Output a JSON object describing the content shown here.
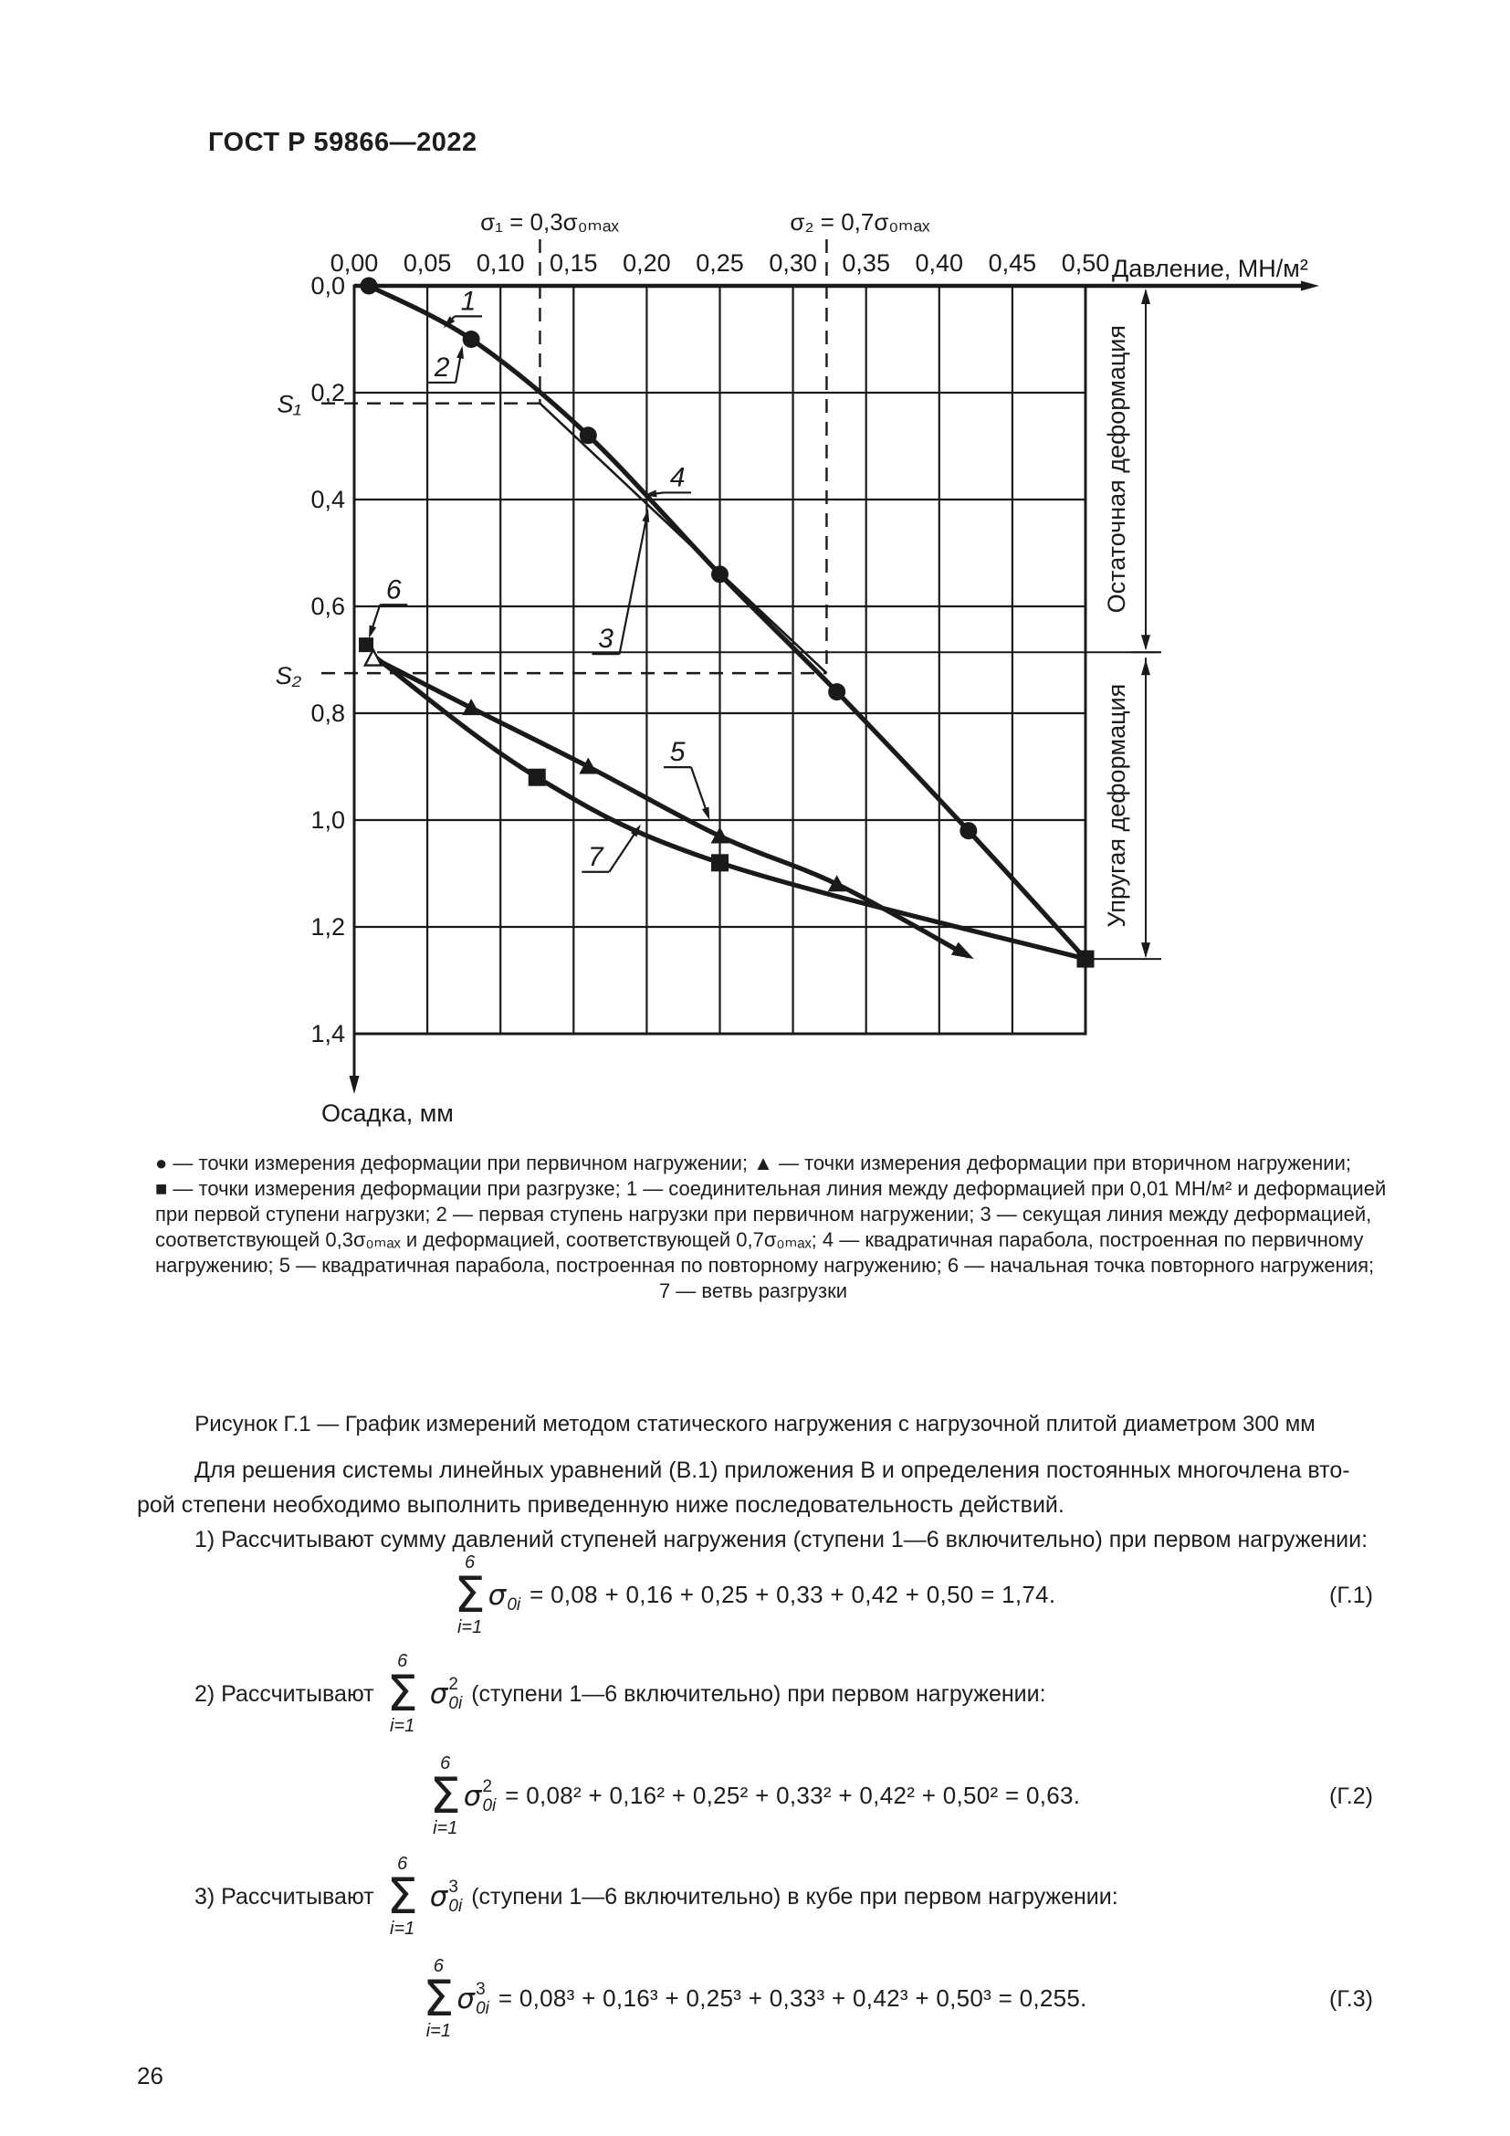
{
  "page": {
    "header": "ГОСТ Р 59866—2022",
    "number": "26"
  },
  "chart_data": {
    "type": "line",
    "title": "",
    "xlabel": "Давление, МН/м²",
    "ylabel": "Осадка, мм",
    "xlim": [
      0,
      0.5
    ],
    "ylim": [
      0,
      1.4
    ],
    "grid": true,
    "xticks": [
      "0,00",
      "0,05",
      "0,10",
      "0,15",
      "0,20",
      "0,25",
      "0,30",
      "0,35",
      "0,40",
      "0,45",
      "0,50"
    ],
    "yticks": [
      "0,0",
      "0,2",
      "0,4",
      "0,6",
      "0,8",
      "1,0",
      "1,2",
      "1,4"
    ],
    "sigma1_label": "σ₁ = 0,3σ₀ₘₐₓ",
    "sigma2_label": "σ₂ = 0,7σ₀ₘₐₓ",
    "s1_label": "S₁",
    "s2_label": "S₂",
    "region_labels": {
      "residual": "Остаточная деформация",
      "elastic": "Упругая деформация"
    },
    "construction": {
      "sigma1_x": 0.127,
      "s1": 0.22,
      "sigma2_x": 0.323,
      "s2": 0.725
    },
    "split_s": 0.686,
    "bottom_s": 1.26,
    "series": [
      {
        "name": "primary",
        "label": "первичное нагружение",
        "marker": "circle",
        "points": [
          [
            0.01,
            0.0
          ],
          [
            0.08,
            0.1
          ],
          [
            0.16,
            0.28
          ],
          [
            0.25,
            0.54
          ],
          [
            0.33,
            0.76
          ],
          [
            0.42,
            1.02
          ],
          [
            0.5,
            1.26
          ]
        ]
      },
      {
        "name": "secondary",
        "label": "вторичное нагружение",
        "marker": "triangle",
        "points": [
          [
            0.012,
            0.695
          ],
          [
            0.08,
            0.79
          ],
          [
            0.16,
            0.9
          ],
          [
            0.25,
            1.03
          ],
          [
            0.33,
            1.12
          ],
          [
            0.42,
            1.255
          ]
        ]
      },
      {
        "name": "unloading",
        "label": "разгрузка",
        "marker": "square",
        "points": [
          [
            0.5,
            1.26
          ],
          [
            0.25,
            1.08
          ],
          [
            0.125,
            0.92
          ],
          [
            0.012,
            0.69
          ]
        ]
      }
    ],
    "secant": [
      [
        0.127,
        0.22
      ],
      [
        0.323,
        0.725
      ]
    ],
    "callouts": [
      {
        "n": "1",
        "lx": 0.078,
        "ly": 0.028,
        "tx": 0.061,
        "ty": 0.079
      },
      {
        "n": "2",
        "lx": 0.06,
        "ly": 0.152,
        "tx": 0.074,
        "ty": 0.112
      },
      {
        "n": "3",
        "lx": 0.172,
        "ly": 0.66,
        "tx": 0.201,
        "ty": 0.418
      },
      {
        "n": "4",
        "lx": 0.221,
        "ly": 0.358,
        "tx": 0.198,
        "ty": 0.392
      },
      {
        "n": "5",
        "lx": 0.221,
        "ly": 0.872,
        "tx": 0.243,
        "ty": 1.0
      },
      {
        "n": "6",
        "lx": 0.027,
        "ly": 0.568,
        "tx": 0.01,
        "ty": 0.66
      },
      {
        "n": "7",
        "lx": 0.165,
        "ly": 1.068,
        "tx": 0.196,
        "ty": 1.008
      }
    ]
  },
  "legend": {
    "lines": [
      "● — точки измерения деформации при первичном нагружении; ▲ — точки измерения деформации при вторичном нагружении;",
      "■ — точки измерения деформации при разгрузке; 1 — соединительная линия между деформацией при 0,01 МН/м² и деформацией",
      "при первой ступени нагрузки; 2 — первая ступень нагрузки при первичном нагружении; 3 — секущая линия между деформацией,",
      "соответствующей 0,3σ₀ₘₐₓ и деформацией, соответствующей 0,7σ₀ₘₐₓ; 4 — квадратичная парабола, построенная по первичному",
      "нагружению; 5 — квадратичная парабола, построенная по повторному нагружению; 6 — начальная точка повторного нагружения;",
      "7 — ветвь разгрузки"
    ]
  },
  "caption": "Рисунок Г.1 — График измерений методом статического нагружения с нагрузочной плитой диаметром 300 мм",
  "body": {
    "para_line1": "Для решения системы линейных уравнений (В.1) приложения В и определения постоянных многочлена вто-",
    "para_line2": "рой степени необходимо выполнить приведенную ниже последовательность действий.",
    "item1": "1) Рассчитывают сумму давлений ступеней нагружения (ступени 1—6 включительно) при первом нагружении:",
    "item2_prefix": "2) Рассчитывают",
    "item2_suffix": "(ступени 1—6 включительно) при первом нагружении:",
    "item3_prefix": "3) Рассчитывают",
    "item3_suffix": "(ступени 1—6 включительно) в кубе при первом нагружении:"
  },
  "symbols": {
    "sum": "Σ",
    "sigma": "σ"
  },
  "formulas": [
    {
      "limit_top": "6",
      "limit_bot": "i=1",
      "sub": "0i",
      "power": "",
      "rhs": "= 0,08 + 0,16 + 0,25 + 0,33 + 0,42 + 0,50 = 1,74.",
      "tag": "(Г.1)"
    },
    {
      "limit_top": "6",
      "limit_bot": "i=1",
      "sub": "0i",
      "power": "2",
      "rhs": "= 0,08² + 0,16² + 0,25² + 0,33² + 0,42² + 0,50² = 0,63.",
      "tag": "(Г.2)"
    },
    {
      "limit_top": "6",
      "limit_bot": "i=1",
      "sub": "0i",
      "power": "3",
      "rhs": "= 0,08³ + 0,16³ + 0,25³ + 0,33³ + 0,42³ + 0,50³ = 0,255.",
      "tag": "(Г.3)"
    }
  ]
}
